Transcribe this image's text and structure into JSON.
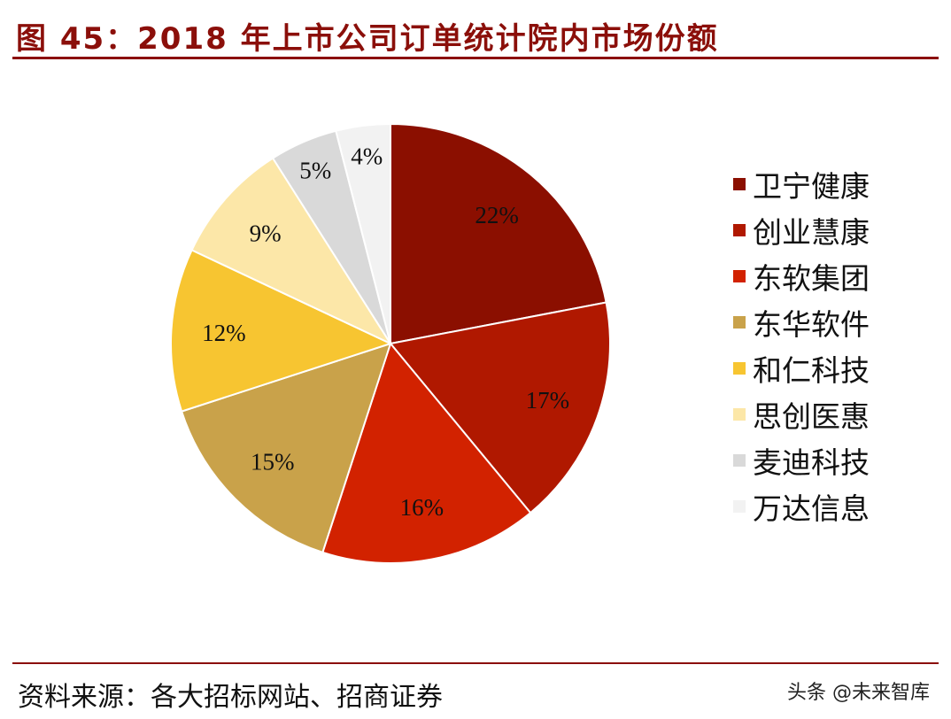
{
  "header": {
    "title": "图 45：2018 年上市公司订单统计院内市场份额"
  },
  "chart_data": {
    "type": "pie",
    "title": "图 45：2018 年上市公司订单统计院内市场份额",
    "categories": [
      "卫宁健康",
      "创业慧康",
      "东软集团",
      "东华软件",
      "和仁科技",
      "思创医惠",
      "麦迪科技",
      "万达信息"
    ],
    "values": [
      22,
      17,
      16,
      15,
      12,
      9,
      5,
      4
    ],
    "labels": [
      "22%",
      "17%",
      "16%",
      "15%",
      "12%",
      "9%",
      "5%",
      "4%"
    ],
    "colors": [
      "#8b0f00",
      "#b01800",
      "#d22200",
      "#c9a24a",
      "#f7c531",
      "#fce7a8",
      "#d9d9d9",
      "#f2f2f2"
    ],
    "legend_position": "right"
  },
  "footer": {
    "source": "资料来源：各大招标网站、招商证券",
    "watermark": "头条 @未来智库"
  }
}
